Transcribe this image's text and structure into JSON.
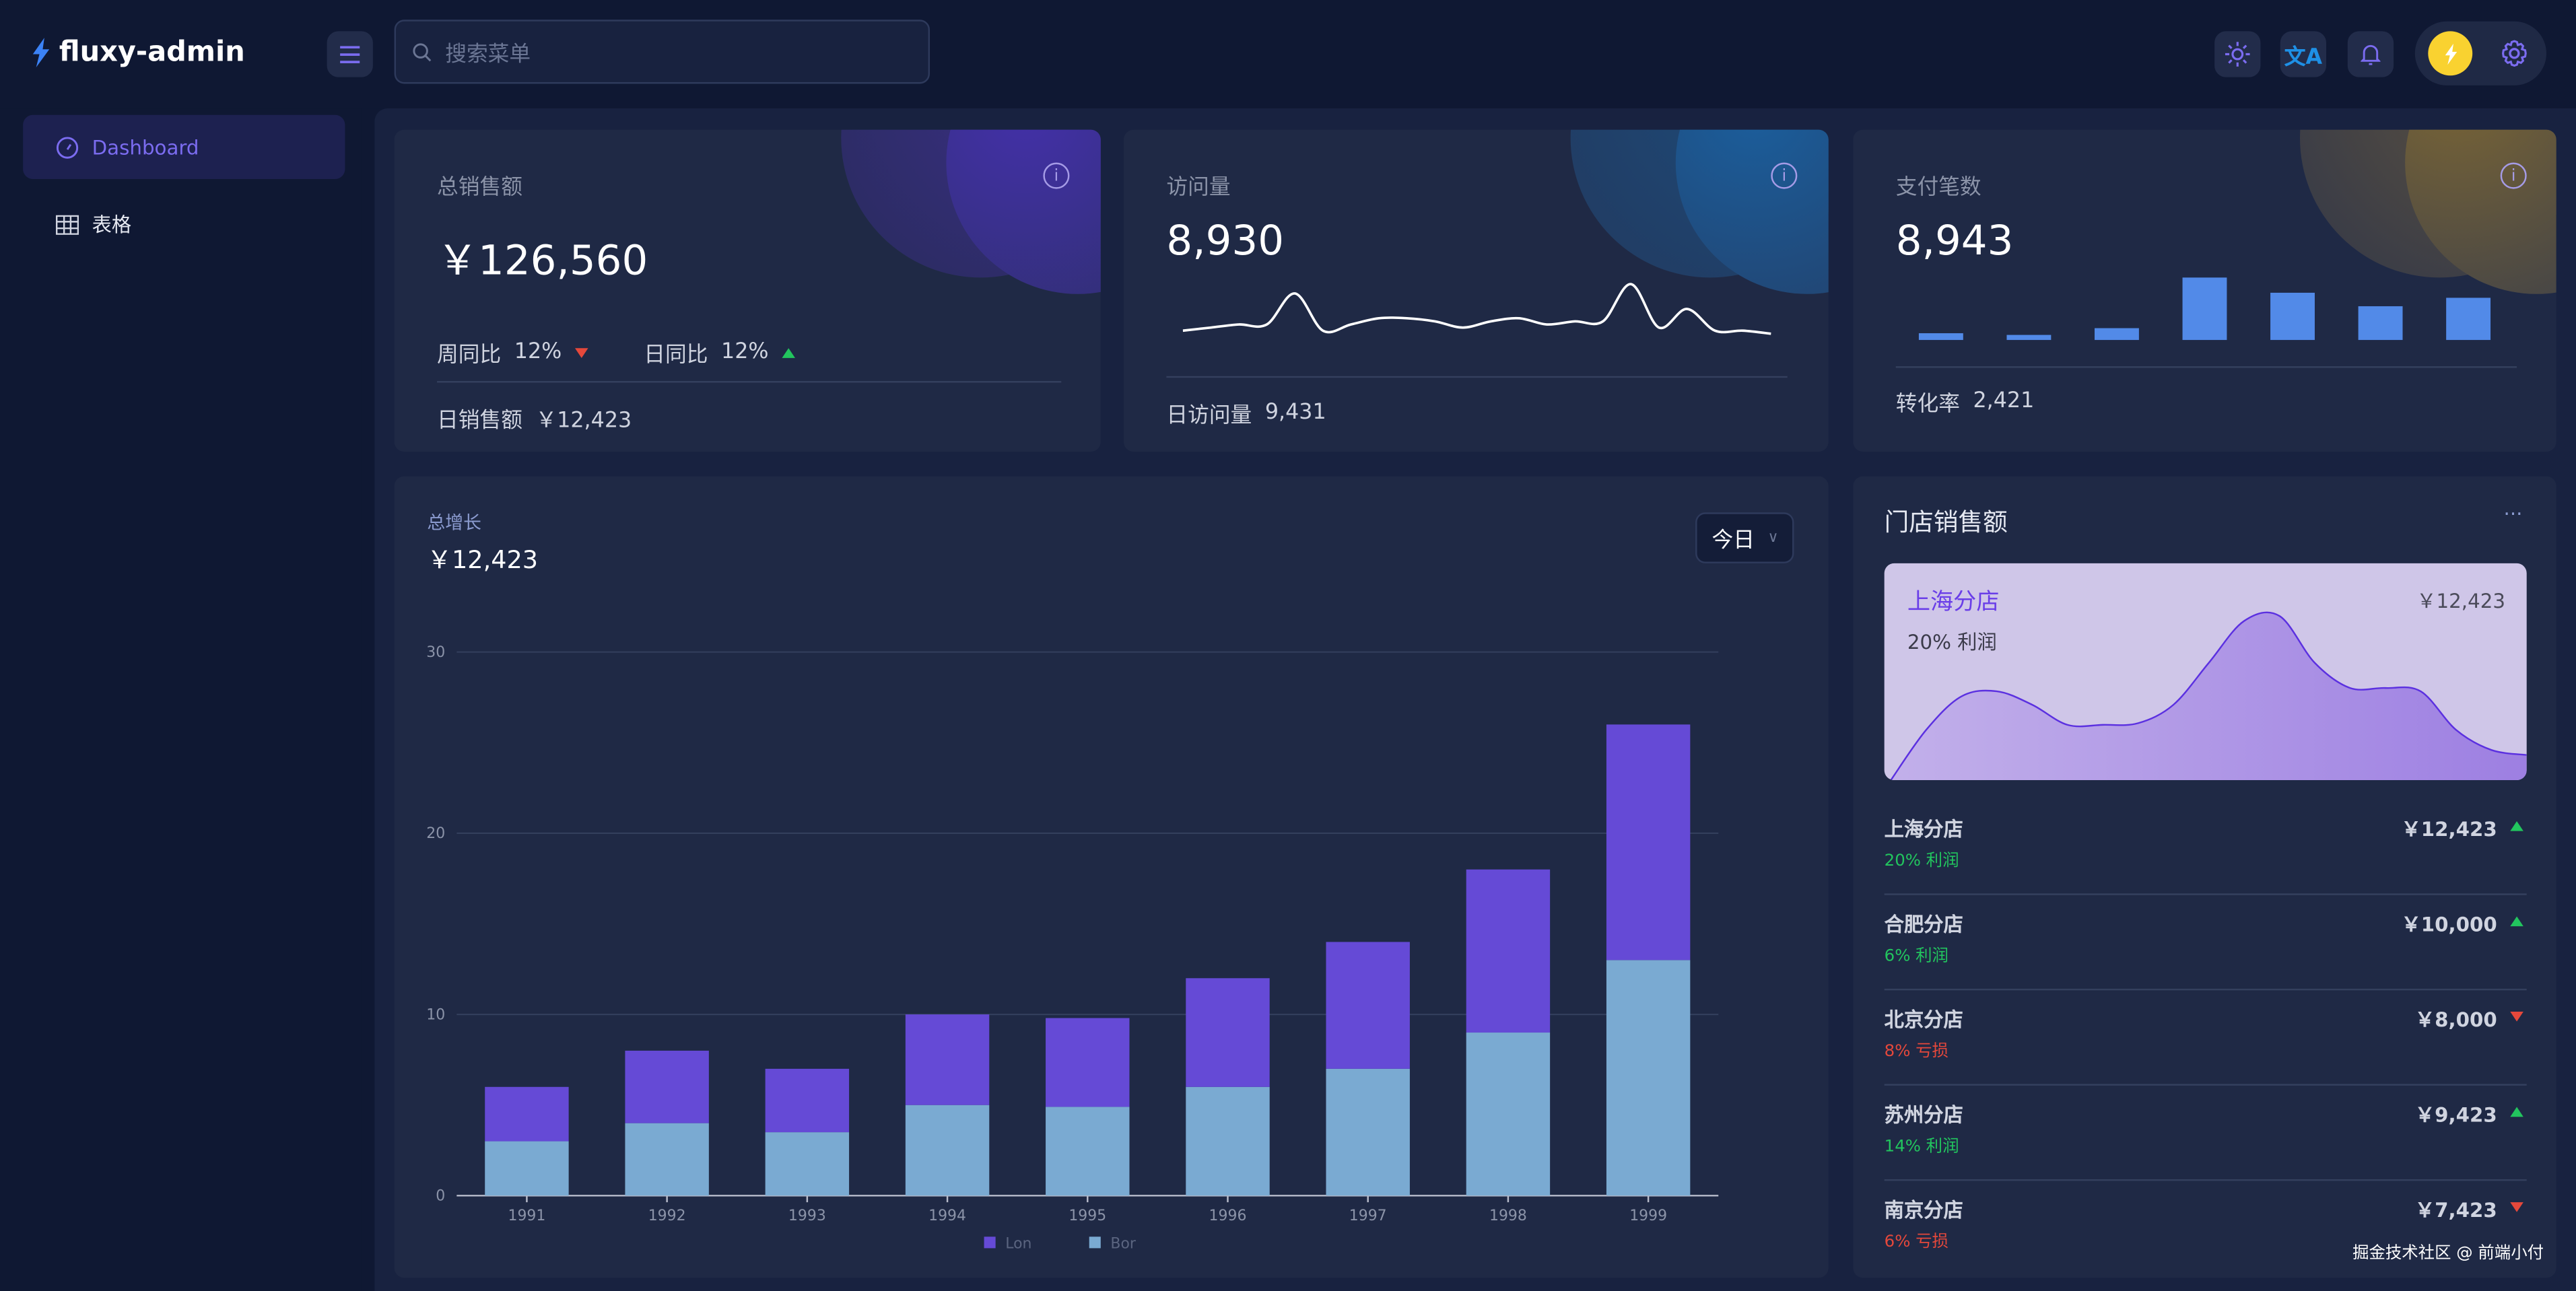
{
  "app": {
    "name": "fluxy-admin"
  },
  "header": {
    "search_placeholder": "搜索菜单",
    "icons": [
      "menu-icon",
      "sun-icon",
      "translate-icon",
      "bell-icon",
      "lightning-icon",
      "gear-icon"
    ]
  },
  "sidebar": {
    "items": [
      {
        "label": "Dashboard",
        "icon": "dashboard-icon",
        "active": true
      },
      {
        "label": "表格",
        "icon": "table-icon",
        "active": false
      }
    ]
  },
  "colors": {
    "accent": "#6a5cf0",
    "purple_bar": "#654ad6",
    "blue_bar": "#7aaad2",
    "mini_bar": "#528ae8",
    "up": "#22c55e",
    "down": "#e5483b"
  },
  "cards": {
    "sales": {
      "title": "总销售额",
      "value": "￥126,560",
      "week_label": "周同比",
      "week_value": "12%",
      "week_trend": "down",
      "day_label": "日同比",
      "day_value": "12%",
      "day_trend": "up",
      "footer_label": "日销售额",
      "footer_value": "￥12,423"
    },
    "visits": {
      "title": "访问量",
      "value": "8,930",
      "footer_label": "日访问量",
      "footer_value": "9,431",
      "sparkline": [
        3,
        4,
        5,
        5,
        15,
        3,
        5,
        7,
        7,
        6,
        4,
        6,
        7,
        5,
        6,
        6,
        18,
        4,
        10,
        3,
        3,
        2
      ]
    },
    "payments": {
      "title": "支付笔数",
      "value": "8,943",
      "footer_label": "转化率",
      "footer_value": "2,421",
      "bars": [
        4,
        3,
        7,
        37,
        28,
        20,
        25
      ]
    }
  },
  "growth": {
    "title": "总增长",
    "value": "￥12,423",
    "period": "今日"
  },
  "chart_data": {
    "type": "bar",
    "stacked": true,
    "categories": [
      "1991",
      "1992",
      "1993",
      "1994",
      "1995",
      "1996",
      "1997",
      "1998",
      "1999"
    ],
    "series": [
      {
        "name": "Bor",
        "values": [
          3,
          4,
          3.5,
          5,
          4.9,
          6,
          7,
          9,
          13
        ]
      },
      {
        "name": "Lon",
        "values": [
          3,
          4,
          3.5,
          5,
          4.9,
          6,
          7,
          9,
          13
        ]
      }
    ],
    "ylim": [
      0,
      30
    ],
    "yticks": [
      "0",
      "10",
      "20",
      "30"
    ],
    "grid": true,
    "legend": "bottom"
  },
  "stores": {
    "title": "门店销售额",
    "more": "···",
    "featured": {
      "name": "上海分店",
      "value": "￥12,423",
      "profit": "20% 利润",
      "area": [
        0,
        3,
        5,
        5.3,
        4.5,
        3.3,
        3.3,
        3.4,
        4.5,
        7,
        9.5,
        9.8,
        7,
        5.5,
        5.5,
        5.3,
        3,
        1.8,
        1.5
      ]
    },
    "list": [
      {
        "name": "上海分店",
        "value": "￥12,423",
        "profit": "20% 利润",
        "trend": "up"
      },
      {
        "name": "合肥分店",
        "value": "￥10,000",
        "profit": "6% 利润",
        "trend": "up"
      },
      {
        "name": "北京分店",
        "value": "￥8,000",
        "profit": "8% 亏损",
        "trend": "down"
      },
      {
        "name": "苏州分店",
        "value": "￥9,423",
        "profit": "14% 利润",
        "trend": "up"
      },
      {
        "name": "南京分店",
        "value": "￥7,423",
        "profit": "6% 亏损",
        "trend": "down"
      }
    ]
  },
  "watermark": "掘金技术社区 @ 前端小付"
}
